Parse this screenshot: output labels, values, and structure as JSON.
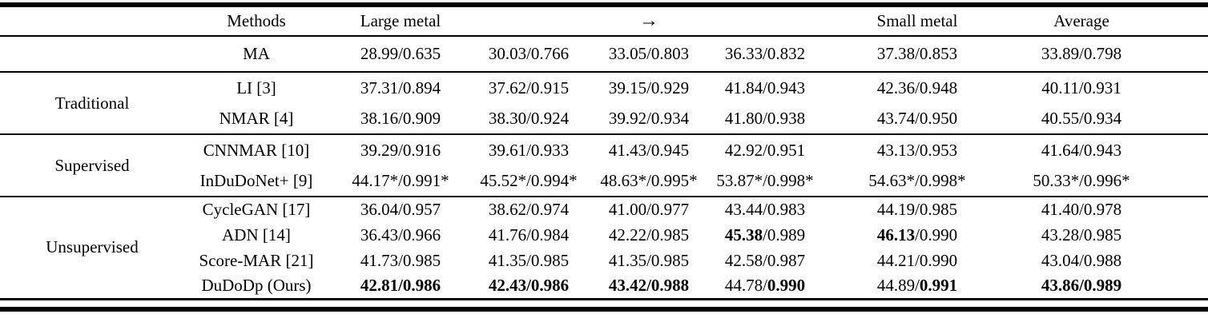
{
  "colors": {
    "text": "#000000",
    "background": "#ffffff",
    "rule": "#000000"
  },
  "table": {
    "columns": [
      "",
      "Methods",
      "Large metal",
      "",
      "→",
      "",
      "Small metal",
      "Average"
    ],
    "arrow_glyph": "→",
    "groups": [
      {
        "label": "",
        "rows": [
          {
            "method": "MA",
            "cells": [
              "28.99/0.635",
              "30.03/0.766",
              "33.05/0.803",
              "36.33/0.832",
              "37.38/0.853",
              "33.89/0.798"
            ]
          }
        ]
      },
      {
        "label": "Traditional",
        "rows": [
          {
            "method": "LI [3]",
            "cells": [
              "37.31/0.894",
              "37.62/0.915",
              "39.15/0.929",
              "41.84/0.943",
              "42.36/0.948",
              "40.11/0.931"
            ]
          },
          {
            "method": "NMAR [4]",
            "cells": [
              "38.16/0.909",
              "38.30/0.924",
              "39.92/0.934",
              "41.80/0.938",
              "43.74/0.950",
              "40.55/0.934"
            ]
          }
        ]
      },
      {
        "label": "Supervised",
        "rows": [
          {
            "method": "CNNMAR [10]",
            "cells": [
              "39.29/0.916",
              "39.61/0.933",
              "41.43/0.945",
              "42.92/0.951",
              "43.13/0.953",
              "41.64/0.943"
            ]
          },
          {
            "method": "InDuDoNet+ [9]",
            "cells": [
              "44.17*/0.991*",
              "45.52*/0.994*",
              "48.63*/0.995*",
              "53.87*/0.998*",
              "54.63*/0.998*",
              "50.33*/0.996*"
            ]
          }
        ]
      },
      {
        "label": "Unsupervised",
        "rows": [
          {
            "method": "CycleGAN [17]",
            "cells": [
              "36.04/0.957",
              "38.62/0.974",
              "41.00/0.977",
              "43.44/0.983",
              "44.19/0.985",
              "41.40/0.978"
            ]
          },
          {
            "method": "ADN [14]",
            "cells": [
              "36.43/0.966",
              "41.76/0.984",
              "42.22/0.985",
              [
                [
                  "45.38",
                  true
                ],
                [
                  "/0.989",
                  false
                ]
              ],
              [
                [
                  "46.13",
                  true
                ],
                [
                  "/0.990",
                  false
                ]
              ],
              "43.28/0.985"
            ]
          },
          {
            "method": "Score-MAR [21]",
            "cells": [
              "41.73/0.985",
              "41.35/0.985",
              "41.35/0.985",
              "42.58/0.987",
              "44.21/0.990",
              "43.04/0.988"
            ]
          },
          {
            "method": "DuDoDp (Ours)",
            "cells": [
              [
                [
                  "42.81/0.986",
                  true
                ]
              ],
              [
                [
                  "42.43/0.986",
                  true
                ]
              ],
              [
                [
                  "43.42/0.988",
                  true
                ]
              ],
              [
                [
                  "44.78/",
                  false
                ],
                [
                  "0.990",
                  true
                ]
              ],
              [
                [
                  "44.89/",
                  false
                ],
                [
                  "0.991",
                  true
                ]
              ],
              [
                [
                  "43.86/0.989",
                  true
                ]
              ]
            ]
          }
        ]
      }
    ]
  }
}
